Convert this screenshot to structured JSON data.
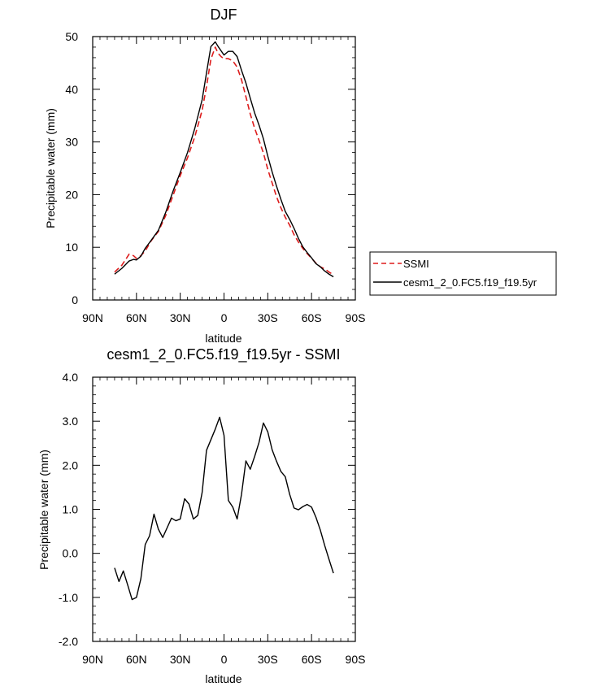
{
  "chart_data": [
    {
      "type": "line",
      "title": "DJF",
      "xlabel": "latitude",
      "ylabel": "Precipitable water (mm)",
      "xlim": [
        -90,
        90
      ],
      "ylim": [
        0,
        50
      ],
      "x_ticks": [
        {
          "value": -90,
          "label": "90N"
        },
        {
          "value": -60,
          "label": "60N"
        },
        {
          "value": -30,
          "label": "30N"
        },
        {
          "value": 0,
          "label": "0"
        },
        {
          "value": 30,
          "label": "30S"
        },
        {
          "value": 60,
          "label": "60S"
        },
        {
          "value": 90,
          "label": "90S"
        }
      ],
      "y_ticks": [
        {
          "value": 0,
          "label": "0"
        },
        {
          "value": 10,
          "label": "10"
        },
        {
          "value": 20,
          "label": "20"
        },
        {
          "value": 30,
          "label": "30"
        },
        {
          "value": 40,
          "label": "40"
        },
        {
          "value": 50,
          "label": "50"
        }
      ],
      "legend_position": "right",
      "grid": false,
      "series": [
        {
          "name": "SSMI",
          "color": "#dd1c1c",
          "dash": "dashed",
          "x": [
            -75,
            -70,
            -65,
            -62,
            -60,
            -57,
            -54,
            -50,
            -45,
            -40,
            -35,
            -30,
            -25,
            -20,
            -15,
            -12,
            -9,
            -6,
            -4,
            -2,
            0,
            3,
            6,
            9,
            12,
            15,
            18,
            21,
            24,
            27,
            30,
            33,
            36,
            39,
            42,
            45,
            48,
            51,
            54,
            57,
            60,
            63,
            66,
            69,
            72,
            75
          ],
          "y": [
            5.3,
            6.6,
            8.7,
            8.4,
            7.9,
            8.4,
            9.3,
            11.2,
            13.0,
            16.0,
            19.8,
            23.6,
            27.0,
            31.0,
            36.0,
            40.5,
            45.7,
            48.0,
            46.8,
            46.2,
            45.8,
            45.8,
            45.4,
            44.2,
            41.8,
            38.6,
            35.3,
            32.6,
            30.3,
            27.9,
            24.8,
            22.2,
            19.6,
            17.5,
            15.7,
            14.2,
            12.4,
            11.0,
            9.8,
            8.8,
            7.9,
            7.0,
            6.3,
            5.9,
            5.3,
            4.8
          ]
        },
        {
          "name": "cesm1_2_0.FC5.f19_f19.5yr",
          "color": "#000000",
          "dash": "solid",
          "x": [
            -75,
            -70,
            -65,
            -62,
            -60,
            -57,
            -54,
            -50,
            -45,
            -40,
            -35,
            -30,
            -25,
            -20,
            -15,
            -12,
            -9,
            -6,
            -4,
            -2,
            0,
            3,
            6,
            9,
            12,
            15,
            18,
            21,
            24,
            27,
            30,
            33,
            36,
            39,
            42,
            45,
            48,
            51,
            54,
            57,
            60,
            63,
            66,
            69,
            72,
            75
          ],
          "y": [
            4.9,
            6.0,
            7.4,
            7.7,
            7.6,
            8.3,
            9.8,
            11.3,
            13.2,
            16.6,
            20.6,
            24.2,
            28.0,
            32.6,
            38.0,
            43.1,
            48.1,
            49.0,
            48.1,
            47.3,
            46.5,
            47.2,
            47.2,
            46.2,
            43.6,
            41.2,
            38.3,
            35.5,
            33.2,
            30.6,
            27.3,
            24.3,
            21.6,
            19.1,
            16.8,
            15.3,
            13.6,
            11.7,
            10.1,
            9.0,
            8.0,
            6.9,
            6.3,
            5.5,
            4.9,
            4.4
          ]
        }
      ]
    },
    {
      "type": "line",
      "title": "cesm1_2_0.FC5.f19_f19.5yr - SSMI",
      "xlabel": "latitude",
      "ylabel": "Precipitable water (mm)",
      "xlim": [
        -90,
        90
      ],
      "ylim": [
        -2.0,
        4.0
      ],
      "x_ticks": [
        {
          "value": -90,
          "label": "90N"
        },
        {
          "value": -60,
          "label": "60N"
        },
        {
          "value": -30,
          "label": "30N"
        },
        {
          "value": 0,
          "label": "0"
        },
        {
          "value": 30,
          "label": "30S"
        },
        {
          "value": 60,
          "label": "60S"
        },
        {
          "value": 90,
          "label": "90S"
        }
      ],
      "y_ticks": [
        {
          "value": -2.0,
          "label": "-2.0"
        },
        {
          "value": -1.0,
          "label": "-1.0"
        },
        {
          "value": 0.0,
          "label": "0.0"
        },
        {
          "value": 1.0,
          "label": "1.0"
        },
        {
          "value": 2.0,
          "label": "2.0"
        },
        {
          "value": 3.0,
          "label": "3.0"
        },
        {
          "value": 4.0,
          "label": "4.0"
        }
      ],
      "grid": false,
      "series": [
        {
          "color": "#000000",
          "dash": "solid",
          "x": [
            -75,
            -72,
            -69,
            -66,
            -63,
            -60,
            -57,
            -54,
            -51,
            -48,
            -45,
            -42,
            -39,
            -36,
            -33,
            -30,
            -27,
            -24,
            -21,
            -18,
            -15,
            -12,
            -9,
            -6,
            -3,
            0,
            3,
            6,
            9,
            12,
            15,
            18,
            21,
            24,
            27,
            30,
            33,
            36,
            39,
            42,
            45,
            48,
            51,
            54,
            57,
            60,
            63,
            66,
            69,
            72,
            75
          ],
          "y": [
            -0.33,
            -0.64,
            -0.4,
            -0.72,
            -1.05,
            -1.0,
            -0.58,
            0.2,
            0.4,
            0.89,
            0.55,
            0.36,
            0.58,
            0.8,
            0.74,
            0.78,
            1.24,
            1.12,
            0.78,
            0.86,
            1.38,
            2.34,
            2.58,
            2.82,
            3.09,
            2.68,
            1.2,
            1.05,
            0.78,
            1.34,
            2.1,
            1.91,
            2.2,
            2.52,
            2.96,
            2.76,
            2.35,
            2.09,
            1.86,
            1.74,
            1.34,
            1.03,
            0.99,
            1.06,
            1.11,
            1.05,
            0.82,
            0.53,
            0.18,
            -0.14,
            -0.45
          ]
        }
      ]
    }
  ]
}
